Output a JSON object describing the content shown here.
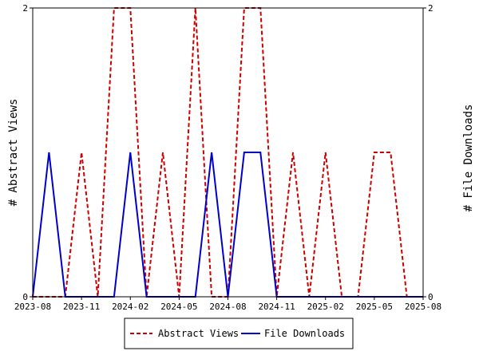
{
  "chart_data": {
    "type": "line",
    "xlabel": "",
    "ylabel_left": "# Abstract Views",
    "ylabel_right": "# File Downloads",
    "x_ticks": [
      "2023-08",
      "2023-11",
      "2024-02",
      "2024-05",
      "2024-08",
      "2024-11",
      "2025-02",
      "2025-05",
      "2025-08"
    ],
    "y_left_ticks": [
      "0",
      "2"
    ],
    "y_right_ticks": [
      "0",
      "2"
    ],
    "ylim_left": [
      0,
      2
    ],
    "ylim_right": [
      0,
      2
    ],
    "grid": false,
    "legend_position": "bottom-center",
    "x": [
      "2023-08",
      "2023-09",
      "2023-10",
      "2023-11",
      "2023-12",
      "2024-01",
      "2024-02",
      "2024-03",
      "2024-04",
      "2024-05",
      "2024-06",
      "2024-07",
      "2024-08",
      "2024-09",
      "2024-10",
      "2024-11",
      "2024-12",
      "2025-01",
      "2025-02",
      "2025-03",
      "2025-04",
      "2025-05",
      "2025-06",
      "2025-07",
      "2025-08"
    ],
    "series": [
      {
        "name": "Abstract Views",
        "axis": "left",
        "color": "#cc0000",
        "dash": true,
        "values": [
          0,
          0,
          0,
          1,
          0,
          2,
          2,
          0,
          1,
          0,
          2,
          0,
          0,
          2,
          2,
          0,
          1,
          0,
          1,
          0,
          0,
          1,
          1,
          0,
          0
        ]
      },
      {
        "name": "File Downloads",
        "axis": "right",
        "color": "#0000cc",
        "dash": false,
        "values": [
          0,
          1,
          0,
          0,
          0,
          0,
          1,
          0,
          0,
          0,
          0,
          1,
          0,
          1,
          1,
          0,
          0,
          0,
          0,
          0,
          0,
          0,
          0,
          0,
          0
        ]
      }
    ]
  }
}
